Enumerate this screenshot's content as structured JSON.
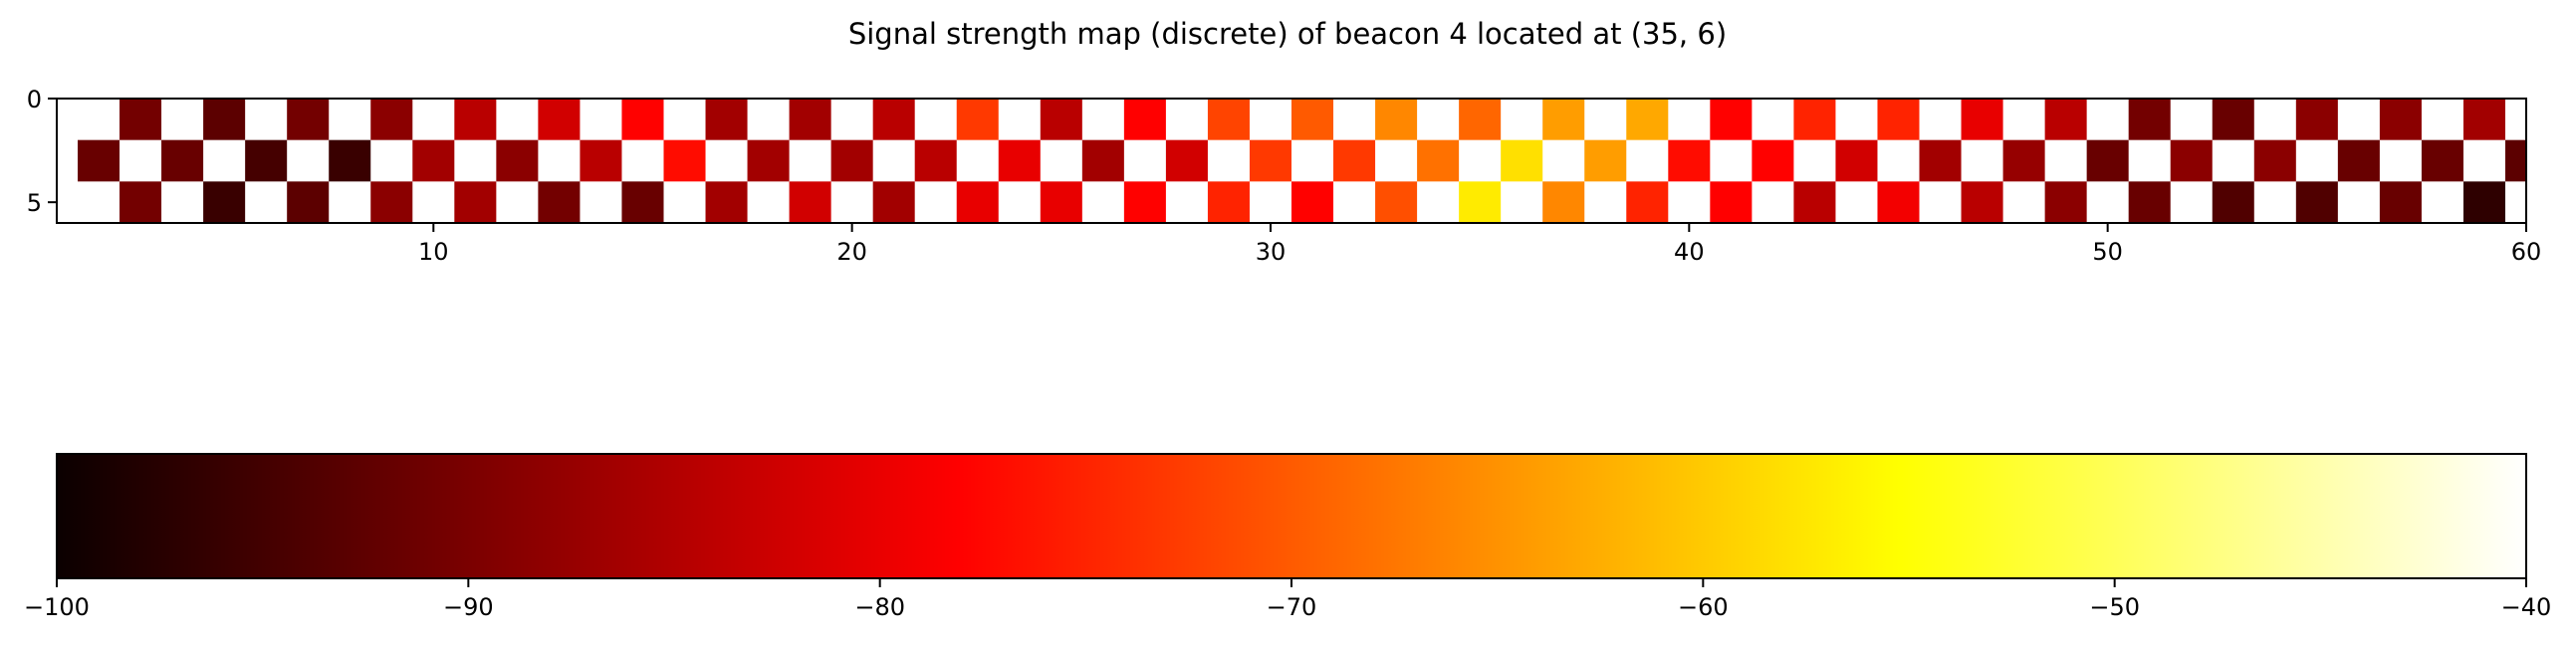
{
  "chart_data": {
    "type": "heatmap",
    "title": "Signal strength map (discrete) of beacon 4 located at (35, 6)",
    "xlabel": "",
    "ylabel": "",
    "x_range": [
      1,
      60
    ],
    "y_range": [
      0,
      6
    ],
    "y_inverted": true,
    "x_ticks": [
      10,
      20,
      30,
      40,
      50,
      60
    ],
    "y_ticks": [
      0,
      5
    ],
    "colormap": "hot",
    "rows": [
      1,
      3,
      5
    ],
    "value_grid_note": "cells[r] lists [x, value] for row r; x is the column index; blank cells are not listed",
    "cells": {
      "1": [
        [
          3,
          -91
        ],
        [
          5,
          -93
        ],
        [
          7,
          -91
        ],
        [
          9,
          -89
        ],
        [
          11,
          -85
        ],
        [
          13,
          -83
        ],
        [
          15,
          -78
        ],
        [
          17,
          -87
        ],
        [
          19,
          -87
        ],
        [
          21,
          -85
        ],
        [
          23,
          -73
        ],
        [
          25,
          -85
        ],
        [
          27,
          -79
        ],
        [
          29,
          -72
        ],
        [
          31,
          -70
        ],
        [
          33,
          -66
        ],
        [
          35,
          -69
        ],
        [
          37,
          -64
        ],
        [
          39,
          -63
        ],
        [
          41,
          -78
        ],
        [
          43,
          -75
        ],
        [
          45,
          -75
        ],
        [
          47,
          -81
        ],
        [
          49,
          -85
        ],
        [
          51,
          -91
        ],
        [
          53,
          -92
        ],
        [
          55,
          -89
        ],
        [
          57,
          -89
        ],
        [
          59,
          -87
        ]
      ],
      "3": [
        [
          2,
          -92
        ],
        [
          4,
          -92
        ],
        [
          6,
          -95
        ],
        [
          8,
          -96
        ],
        [
          10,
          -87
        ],
        [
          12,
          -89
        ],
        [
          14,
          -85
        ],
        [
          16,
          -77
        ],
        [
          18,
          -87
        ],
        [
          20,
          -87
        ],
        [
          22,
          -85
        ],
        [
          24,
          -81
        ],
        [
          26,
          -87
        ],
        [
          28,
          -83
        ],
        [
          30,
          -73
        ],
        [
          32,
          -73
        ],
        [
          34,
          -68
        ],
        [
          36,
          -58
        ],
        [
          38,
          -64
        ],
        [
          40,
          -77
        ],
        [
          42,
          -78
        ],
        [
          44,
          -83
        ],
        [
          46,
          -87
        ],
        [
          48,
          -88
        ],
        [
          50,
          -92
        ],
        [
          52,
          -89
        ],
        [
          54,
          -89
        ],
        [
          56,
          -92
        ],
        [
          58,
          -92
        ],
        [
          60,
          -93
        ]
      ],
      "5": [
        [
          3,
          -91
        ],
        [
          5,
          -96
        ],
        [
          7,
          -93
        ],
        [
          9,
          -89
        ],
        [
          11,
          -87
        ],
        [
          13,
          -91
        ],
        [
          15,
          -92
        ],
        [
          17,
          -87
        ],
        [
          19,
          -83
        ],
        [
          21,
          -87
        ],
        [
          23,
          -81
        ],
        [
          25,
          -81
        ],
        [
          27,
          -78
        ],
        [
          29,
          -75
        ],
        [
          31,
          -78
        ],
        [
          33,
          -71
        ],
        [
          35,
          -57
        ],
        [
          37,
          -66
        ],
        [
          39,
          -75
        ],
        [
          41,
          -79
        ],
        [
          43,
          -85
        ],
        [
          45,
          -80
        ],
        [
          47,
          -85
        ],
        [
          49,
          -89
        ],
        [
          51,
          -92
        ],
        [
          53,
          -94
        ],
        [
          55,
          -94
        ],
        [
          57,
          -92
        ],
        [
          59,
          -97
        ]
      ]
    },
    "colorbar": {
      "range": [
        -100,
        -40
      ],
      "ticks": [
        -100,
        -90,
        -80,
        -70,
        -60,
        -50,
        -40
      ]
    }
  }
}
